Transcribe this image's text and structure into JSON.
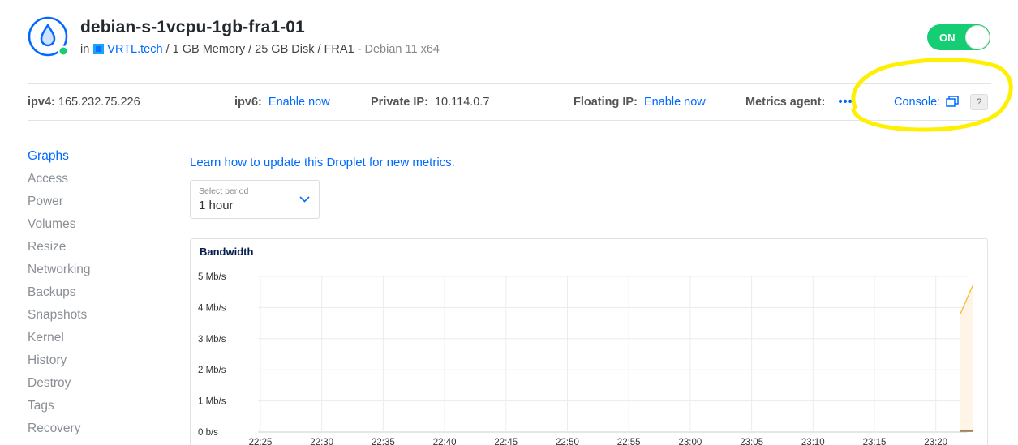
{
  "droplet": {
    "name": "debian-s-1vcpu-1gb-fra1-01",
    "in_label": "in",
    "project": "VRTL.tech",
    "specs": " / 1 GB Memory / 25 GB Disk / FRA1",
    "os": " - Debian 11 x64",
    "power_state": "ON"
  },
  "ipbar": {
    "ipv4_label": "ipv4:",
    "ipv4_value": "165.232.75.226",
    "ipv6_label": "ipv6:",
    "ipv6_action": "Enable now",
    "private_ip_label": "Private IP:",
    "private_ip_value": "10.114.0.7",
    "floating_ip_label": "Floating IP:",
    "floating_ip_action": "Enable now",
    "metrics_agent_label": "Metrics agent:",
    "metrics_agent_value": "•••",
    "console_label": "Console:",
    "help_label": "?"
  },
  "sidebar": {
    "items": [
      {
        "label": "Graphs",
        "active": true
      },
      {
        "label": "Access"
      },
      {
        "label": "Power"
      },
      {
        "label": "Volumes"
      },
      {
        "label": "Resize"
      },
      {
        "label": "Networking"
      },
      {
        "label": "Backups"
      },
      {
        "label": "Snapshots"
      },
      {
        "label": "Kernel"
      },
      {
        "label": "History"
      },
      {
        "label": "Destroy"
      },
      {
        "label": "Tags"
      },
      {
        "label": "Recovery"
      }
    ]
  },
  "main": {
    "learn_link": "Learn how to update this Droplet for new metrics.",
    "period_label": "Select period",
    "period_value": "1 hour"
  },
  "colors": {
    "accent": "#0069ff",
    "on_toggle": "#15cd72",
    "highlight": "#ffef00",
    "series_line": "#f5b930",
    "series_fill": "#fff5e6"
  },
  "chart_data": {
    "type": "area",
    "title": "Bandwidth",
    "x_ticks": [
      "22:25",
      "22:30",
      "22:35",
      "22:40",
      "22:45",
      "22:50",
      "22:55",
      "23:00",
      "23:05",
      "23:10",
      "23:15",
      "23:20"
    ],
    "y_ticks": [
      "0 b/s",
      "1 Mb/s",
      "2 Mb/s",
      "3 Mb/s",
      "4 Mb/s",
      "5 Mb/s"
    ],
    "ylim": [
      0,
      5
    ],
    "y_unit": "Mb/s",
    "grid": true,
    "series": [
      {
        "color": "#f5b930",
        "x": [
          "23:22",
          "23:23"
        ],
        "values": [
          3.8,
          4.7
        ]
      },
      {
        "color": "#a08060",
        "x": [
          "23:22",
          "23:23"
        ],
        "values": [
          0.03,
          0.03
        ]
      }
    ]
  }
}
